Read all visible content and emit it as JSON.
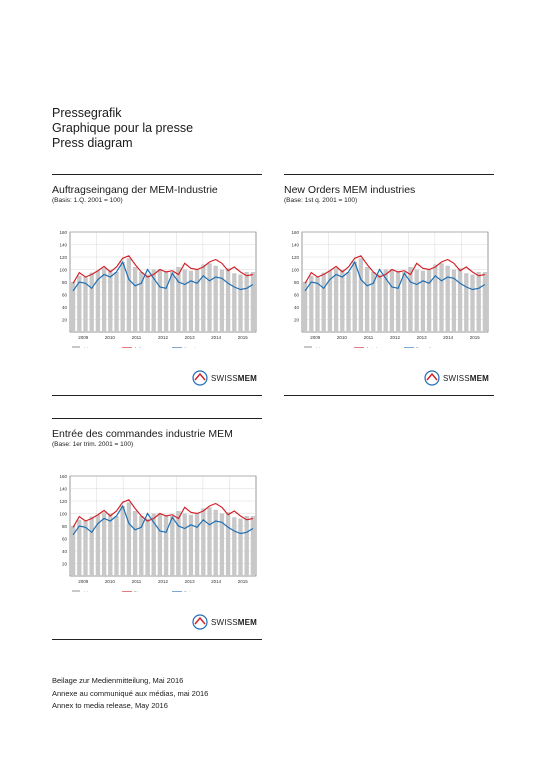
{
  "header": {
    "line1": "Pressegrafik",
    "line2": "Graphique pour la presse",
    "line3": "Press diagram"
  },
  "panels": [
    {
      "title": "Auftragseingang der MEM-Industrie",
      "basis": "(Basis: 1.Q. 2001 = 100)",
      "legend": [
        "Ist",
        "Auftrag",
        "Umsatz"
      ]
    },
    {
      "title": "New Orders MEM industries",
      "basis": "(Base: 1st q. 2001 = 100)",
      "legend": [
        "Ist",
        "Actual",
        "Domestic"
      ]
    },
    {
      "title": "Entrée des commandes industrie MEM",
      "basis": "(Base: 1er trim. 2001 = 100)",
      "legend": [
        "Ist",
        "Etranger",
        "Suisse"
      ]
    }
  ],
  "logo": {
    "text_bold": "SWISS",
    "text_strong": "MEM"
  },
  "footer": {
    "line1": "Beilage zur Medienmitteilung, Mai 2016",
    "line2": "Annexe au communiqué aux médias, mai 2016",
    "line3": "Annex to media release, May 2016"
  },
  "colors": {
    "bars": "#c8c8c8",
    "red": "#d2232a",
    "blue": "#1f6fb4"
  },
  "chart_data": {
    "type": "line",
    "ylim": [
      0,
      160
    ],
    "yticks": [
      20,
      40,
      60,
      80,
      100,
      120,
      140,
      160
    ],
    "x_tick_labels": [
      "2009",
      "2010",
      "2011",
      "2012",
      "2013",
      "2014",
      "2015"
    ],
    "grid": true,
    "bars": [
      80,
      90,
      88,
      95,
      98,
      102,
      100,
      96,
      112,
      118,
      104,
      96,
      92,
      100,
      100,
      98,
      96,
      104,
      100,
      98,
      100,
      108,
      110,
      106,
      100,
      102,
      94,
      92,
      96,
      96
    ],
    "series": [
      {
        "values": [
          78,
          95,
          88,
          92,
          98,
          105,
          96,
          104,
          118,
          122,
          108,
          96,
          88,
          92,
          100,
          96,
          98,
          92,
          110,
          102,
          100,
          104,
          112,
          116,
          110,
          98,
          104,
          96,
          90,
          92
        ]
      },
      {
        "values": [
          66,
          80,
          78,
          70,
          84,
          92,
          88,
          96,
          112,
          84,
          74,
          78,
          100,
          86,
          72,
          70,
          94,
          80,
          76,
          82,
          78,
          90,
          82,
          88,
          86,
          78,
          72,
          68,
          70,
          76
        ]
      }
    ]
  }
}
